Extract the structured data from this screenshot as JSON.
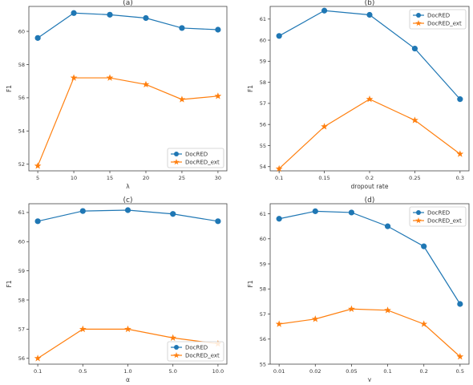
{
  "colors": {
    "series1": "#1f77b4",
    "series2": "#ff7f0e",
    "axis": "#444444"
  },
  "chart_data": [
    {
      "type": "line",
      "title": "(a)",
      "xlabel": "λ",
      "ylabel": "F1",
      "categories": [
        "5",
        "10",
        "15",
        "20",
        "25",
        "30"
      ],
      "ylim": [
        51.6,
        61.5
      ],
      "yticks": [
        52,
        54,
        56,
        58,
        60
      ],
      "ytick_labels": [
        "52",
        "54",
        "56",
        "58",
        "60"
      ],
      "legend_position": "lower-right",
      "series": [
        {
          "name": "DocRED",
          "marker": "circle",
          "values": [
            59.6,
            61.1,
            61.0,
            60.8,
            60.2,
            60.1
          ]
        },
        {
          "name": "DocRED_ext",
          "marker": "star",
          "values": [
            51.9,
            57.2,
            57.2,
            56.8,
            55.9,
            56.1
          ]
        }
      ]
    },
    {
      "type": "line",
      "title": "(b)",
      "xlabel": "dropout rate",
      "ylabel": "F1",
      "categories": [
        "0.1",
        "0.15",
        "0.2",
        "0.25",
        "0.3"
      ],
      "ylim": [
        53.8,
        61.6
      ],
      "yticks": [
        54,
        55,
        56,
        57,
        58,
        59,
        60,
        61
      ],
      "ytick_labels": [
        "54",
        "55",
        "56",
        "57",
        "58",
        "59",
        "60",
        "61"
      ],
      "legend_position": "top-right",
      "series": [
        {
          "name": "DocRED",
          "marker": "circle",
          "values": [
            60.2,
            61.4,
            61.2,
            59.6,
            57.2
          ]
        },
        {
          "name": "DocRED_ext",
          "marker": "star",
          "values": [
            53.9,
            55.9,
            57.2,
            56.2,
            54.6
          ]
        }
      ]
    },
    {
      "type": "line",
      "title": "(c)",
      "xlabel": "α",
      "ylabel": "F1",
      "categories": [
        "0.1",
        "0.5",
        "1.0",
        "5.0",
        "10.0"
      ],
      "ylim": [
        55.8,
        61.3
      ],
      "yticks": [
        56,
        57,
        58,
        59,
        60,
        61
      ],
      "ytick_labels": [
        "56",
        "57",
        "58",
        "59",
        "60",
        "61"
      ],
      "legend_position": "lower-right",
      "series": [
        {
          "name": "DocRED",
          "marker": "circle",
          "values": [
            60.7,
            61.05,
            61.08,
            60.95,
            60.7
          ]
        },
        {
          "name": "DocRED_ext",
          "marker": "star",
          "values": [
            56.0,
            57.0,
            57.0,
            56.7,
            56.5
          ]
        }
      ]
    },
    {
      "type": "line",
      "title": "(d)",
      "xlabel": "γ",
      "ylabel": "F1",
      "categories": [
        "0.01",
        "0.02",
        "0.05",
        "0.1",
        "0.2",
        "0.5"
      ],
      "ylim": [
        55.0,
        61.4
      ],
      "yticks": [
        55,
        56,
        57,
        58,
        59,
        60,
        61
      ],
      "ytick_labels": [
        "55",
        "56",
        "57",
        "58",
        "59",
        "60",
        "61"
      ],
      "legend_position": "top-right",
      "series": [
        {
          "name": "DocRED",
          "marker": "circle",
          "values": [
            60.8,
            61.1,
            61.05,
            60.5,
            59.7,
            57.4
          ]
        },
        {
          "name": "DocRED_ext",
          "marker": "star",
          "values": [
            56.6,
            56.8,
            57.2,
            57.15,
            56.6,
            55.3
          ]
        }
      ]
    }
  ]
}
